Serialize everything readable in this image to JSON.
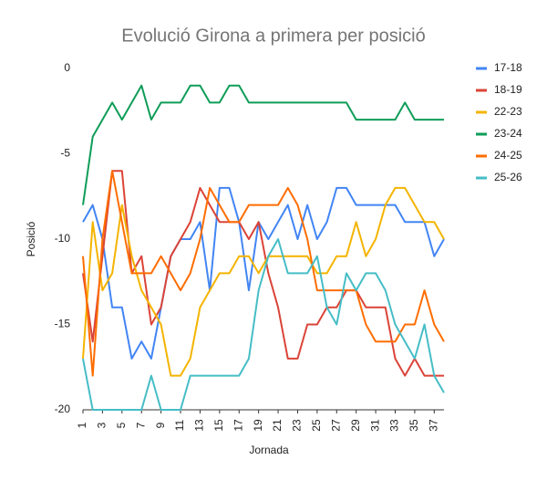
{
  "chart_data": {
    "type": "line",
    "title": "Evolució Girona a primera per posició",
    "x_label": "Jornada",
    "y_label": "Posició",
    "x": [
      1,
      2,
      3,
      4,
      5,
      6,
      7,
      8,
      9,
      10,
      11,
      12,
      13,
      14,
      15,
      16,
      17,
      18,
      19,
      20,
      21,
      22,
      23,
      24,
      25,
      26,
      27,
      28,
      29,
      30,
      31,
      32,
      33,
      34,
      35,
      36,
      37,
      38
    ],
    "xlim": [
      1,
      38
    ],
    "xticks": [
      1,
      3,
      5,
      7,
      9,
      11,
      13,
      15,
      17,
      19,
      21,
      23,
      25,
      27,
      29,
      31,
      33,
      35,
      37
    ],
    "ylim": [
      -20,
      0
    ],
    "yticks": [
      0,
      -5,
      -10,
      -15,
      -20
    ],
    "grid": false,
    "legend": "right",
    "series": [
      {
        "name": "17-18",
        "color": "#4285f4",
        "values": [
          -9,
          -8,
          -10,
          -14,
          -14,
          -17,
          -16,
          -17,
          -14,
          -11,
          -10,
          -10,
          -9,
          -13,
          -7,
          -7,
          -9,
          -13,
          -9,
          -10,
          -9,
          -8,
          -10,
          -8,
          -10,
          -9,
          -7,
          -7,
          -8,
          -8,
          -8,
          -8,
          -8,
          -9,
          -9,
          -9,
          -11,
          -10
        ]
      },
      {
        "name": "18-19",
        "color": "#db4437",
        "values": [
          -12,
          -16,
          -11,
          -6,
          -6,
          -12,
          -11,
          -15,
          -14,
          -11,
          -10,
          -9,
          -7,
          -8,
          -9,
          -9,
          -9,
          -10,
          -9,
          -12,
          -14,
          -17,
          -17,
          -15,
          -15,
          -14,
          -14,
          -13,
          -13,
          -14,
          -14,
          -14,
          -17,
          -18,
          -17,
          -18,
          -18,
          -18
        ]
      },
      {
        "name": "22-23",
        "color": "#f4b400",
        "values": [
          -17,
          -9,
          -13,
          -12,
          -8,
          -11,
          -13,
          -14,
          -15,
          -18,
          -18,
          -17,
          -14,
          -13,
          -12,
          -12,
          -11,
          -11,
          -12,
          -11,
          -11,
          -11,
          -11,
          -11,
          -12,
          -12,
          -11,
          -11,
          -9,
          -11,
          -10,
          -8,
          -7,
          -7,
          -8,
          -9,
          -9,
          -10
        ]
      },
      {
        "name": "23-24",
        "color": "#0f9d58",
        "values": [
          -8,
          -4,
          -3,
          -2,
          -3,
          -2,
          -1,
          -3,
          -2,
          -2,
          -2,
          -1,
          -1,
          -2,
          -2,
          -1,
          -1,
          -2,
          -2,
          -2,
          -2,
          -2,
          -2,
          -2,
          -2,
          -2,
          -2,
          -2,
          -3,
          -3,
          -3,
          -3,
          -3,
          -2,
          -3,
          -3,
          -3,
          -3
        ]
      },
      {
        "name": "24-25",
        "color": "#ff6d01",
        "values": [
          -11,
          -18,
          -10,
          -6,
          -9,
          -12,
          -12,
          -12,
          -11,
          -12,
          -13,
          -12,
          -10,
          -7,
          -8,
          -9,
          -9,
          -8,
          -8,
          -8,
          -8,
          -7,
          -8,
          -10,
          -13,
          -13,
          -13,
          -13,
          -13,
          -15,
          -16,
          -16,
          -16,
          -15,
          -15,
          -13,
          -15,
          -16
        ]
      },
      {
        "name": "25-26",
        "color": "#46bdc6",
        "values": [
          -17,
          -20,
          -20,
          -20,
          -20,
          -20,
          -20,
          -18,
          -20,
          -20,
          -20,
          -18,
          -18,
          -18,
          -18,
          -18,
          -18,
          -17,
          -13,
          -11,
          -10,
          -12,
          -12,
          -12,
          -11,
          -14,
          -15,
          -12,
          -13,
          -12,
          -12,
          -13,
          -15,
          -16,
          -17,
          -15,
          -18,
          -19
        ]
      }
    ]
  }
}
